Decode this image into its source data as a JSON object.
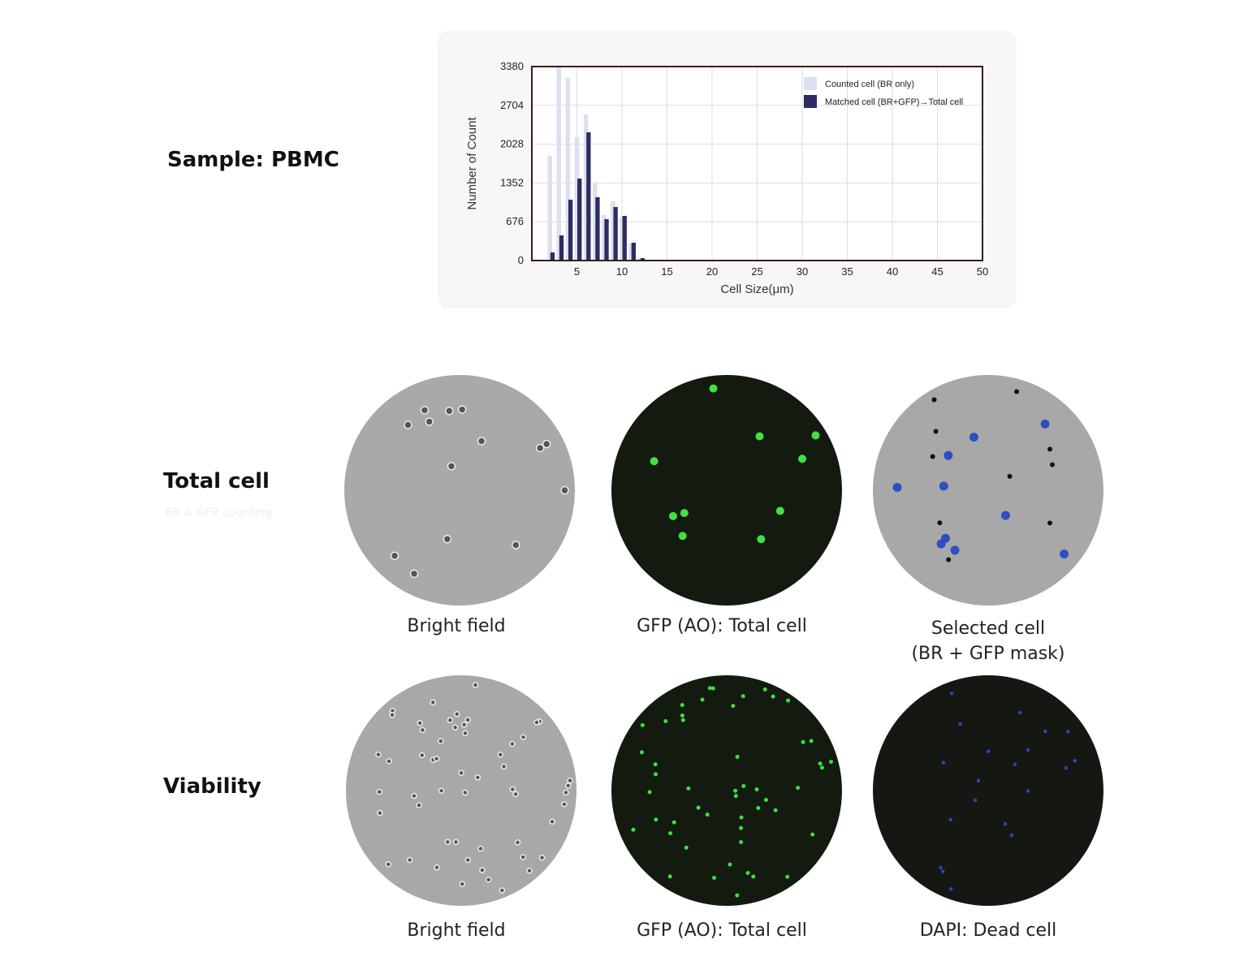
{
  "sample_label": "Sample: PBMC",
  "chart_data": {
    "type": "bar",
    "x": [
      2,
      3,
      4,
      5,
      6,
      7,
      8,
      9,
      10,
      11,
      12
    ],
    "series": [
      {
        "name": "Counted cell (BR only)",
        "color": "#dde0ef",
        "values": [
          1824,
          3380,
          3181,
          2149,
          2545,
          1357,
          792,
          1032,
          749,
          297,
          42
        ]
      },
      {
        "name": "Matched cell (BR+GFP)→Total cell",
        "color": "#2d2d63",
        "values": [
          141,
          438,
          1060,
          1428,
          2234,
          1103,
          721,
          933,
          778,
          311,
          42
        ]
      }
    ],
    "xlabel": "Cell Size(μm)",
    "ylabel": "Number of Count",
    "xlim": [
      0,
      50
    ],
    "xticks": [
      5,
      10,
      15,
      20,
      25,
      30,
      35,
      40,
      45,
      50
    ],
    "ylim": [
      0,
      3380
    ],
    "yticks": [
      0,
      676,
      1352,
      2028,
      2704,
      3380
    ],
    "grid": true,
    "legend": "upper right"
  },
  "rows": [
    {
      "label": "Total cell",
      "sublabel": "BR & GFP counting",
      "captions": [
        "Bright field",
        "GFP (AO): Total cell",
        "Selected cell\n(BR + GFP mask)"
      ]
    },
    {
      "label": "Viability",
      "captions": [
        "Bright field",
        "GFP (AO): Total cell",
        "DAPI: Dead cell"
      ]
    }
  ]
}
